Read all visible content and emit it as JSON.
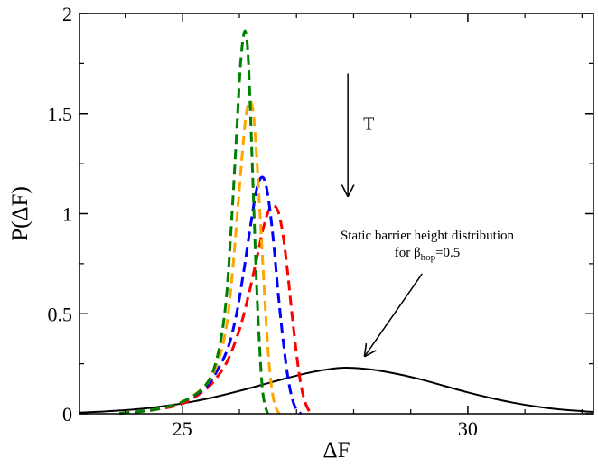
{
  "chart_data": {
    "type": "line",
    "xlabel": "ΔF",
    "ylabel": "P(ΔF)",
    "xlim": [
      23.2,
      32.2
    ],
    "ylim": [
      0,
      2
    ],
    "xticks": [
      25,
      30
    ],
    "yticks": [
      0,
      0.5,
      1,
      1.5,
      2
    ],
    "xtick_labels": [
      "25",
      "30"
    ],
    "ytick_labels": [
      "0",
      "0.5",
      "1",
      "1.5",
      "2"
    ],
    "grid": false,
    "legend": "none",
    "series": [
      {
        "color": "#008000",
        "style": "dashed",
        "peak_x": 26.1,
        "peak_y": 1.91,
        "x": [
          23.9,
          24.5,
          25.0,
          25.4,
          25.6,
          25.75,
          25.85,
          25.95,
          26.02,
          26.08,
          26.12,
          26.16,
          26.2,
          26.25,
          26.3,
          26.35,
          26.4,
          26.45,
          26.5
        ],
        "y": [
          0.002,
          0.02,
          0.06,
          0.14,
          0.27,
          0.52,
          0.9,
          1.4,
          1.75,
          1.9,
          1.89,
          1.75,
          1.45,
          1.05,
          0.65,
          0.35,
          0.13,
          0.04,
          0.0
        ]
      },
      {
        "color": "#FFA500",
        "style": "dashed",
        "peak_x": 26.2,
        "peak_y": 1.56,
        "x": [
          23.9,
          24.5,
          25.0,
          25.4,
          25.6,
          25.75,
          25.85,
          25.95,
          26.05,
          26.12,
          26.18,
          26.23,
          26.28,
          26.34,
          26.4,
          26.46,
          26.52,
          26.58,
          26.64,
          26.7
        ],
        "y": [
          0.002,
          0.02,
          0.06,
          0.14,
          0.24,
          0.4,
          0.62,
          0.95,
          1.3,
          1.5,
          1.56,
          1.53,
          1.38,
          1.1,
          0.8,
          0.5,
          0.25,
          0.1,
          0.03,
          0.0
        ]
      },
      {
        "color": "#0000FF",
        "style": "dashed",
        "peak_x": 26.4,
        "peak_y": 1.18,
        "x": [
          23.9,
          24.5,
          25.0,
          25.4,
          25.6,
          25.8,
          25.95,
          26.08,
          26.2,
          26.3,
          26.38,
          26.45,
          26.52,
          26.6,
          26.68,
          26.76,
          26.84,
          26.92,
          27.0,
          27.08
        ],
        "y": [
          0.002,
          0.02,
          0.06,
          0.13,
          0.21,
          0.33,
          0.5,
          0.72,
          0.95,
          1.12,
          1.18,
          1.16,
          1.05,
          0.85,
          0.6,
          0.38,
          0.2,
          0.08,
          0.02,
          0.0
        ]
      },
      {
        "color": "#FF0000",
        "style": "dashed",
        "peak_x": 26.6,
        "peak_y": 1.04,
        "x": [
          23.9,
          24.5,
          25.0,
          25.4,
          25.6,
          25.8,
          26.0,
          26.15,
          26.3,
          26.42,
          26.52,
          26.6,
          26.68,
          26.76,
          26.84,
          26.92,
          27.0,
          27.08,
          27.16,
          27.25
        ],
        "y": [
          0.002,
          0.02,
          0.05,
          0.12,
          0.18,
          0.27,
          0.42,
          0.58,
          0.77,
          0.93,
          1.02,
          1.04,
          1.01,
          0.9,
          0.72,
          0.5,
          0.3,
          0.14,
          0.05,
          0.0
        ]
      },
      {
        "color": "#000000",
        "style": "solid",
        "peak_x": 27.8,
        "peak_y": 0.23,
        "x": [
          23.2,
          23.6,
          24.0,
          24.4,
          24.8,
          25.2,
          25.6,
          26.0,
          26.4,
          26.8,
          27.2,
          27.6,
          27.8,
          28.0,
          28.4,
          28.8,
          29.2,
          29.6,
          30.0,
          30.4,
          30.8,
          31.2,
          31.6,
          32.0,
          32.2
        ],
        "y": [
          0.006,
          0.011,
          0.018,
          0.028,
          0.043,
          0.062,
          0.086,
          0.114,
          0.145,
          0.176,
          0.204,
          0.224,
          0.23,
          0.229,
          0.218,
          0.197,
          0.17,
          0.138,
          0.107,
          0.079,
          0.055,
          0.036,
          0.022,
          0.013,
          0.009
        ]
      }
    ],
    "annotations": {
      "temperature_label": "T",
      "distribution_line1": "Static barrier height distribution",
      "distribution_line2_prefix": "for β",
      "distribution_line2_subscript": "hop",
      "distribution_line2_suffix": "=0.5",
      "temperature_arrow_from": [
        27.9,
        1.7
      ],
      "temperature_arrow_to": [
        27.9,
        1.09
      ],
      "distribution_arrow_from": [
        29.2,
        0.7
      ],
      "distribution_arrow_to": [
        28.2,
        0.29
      ]
    }
  }
}
